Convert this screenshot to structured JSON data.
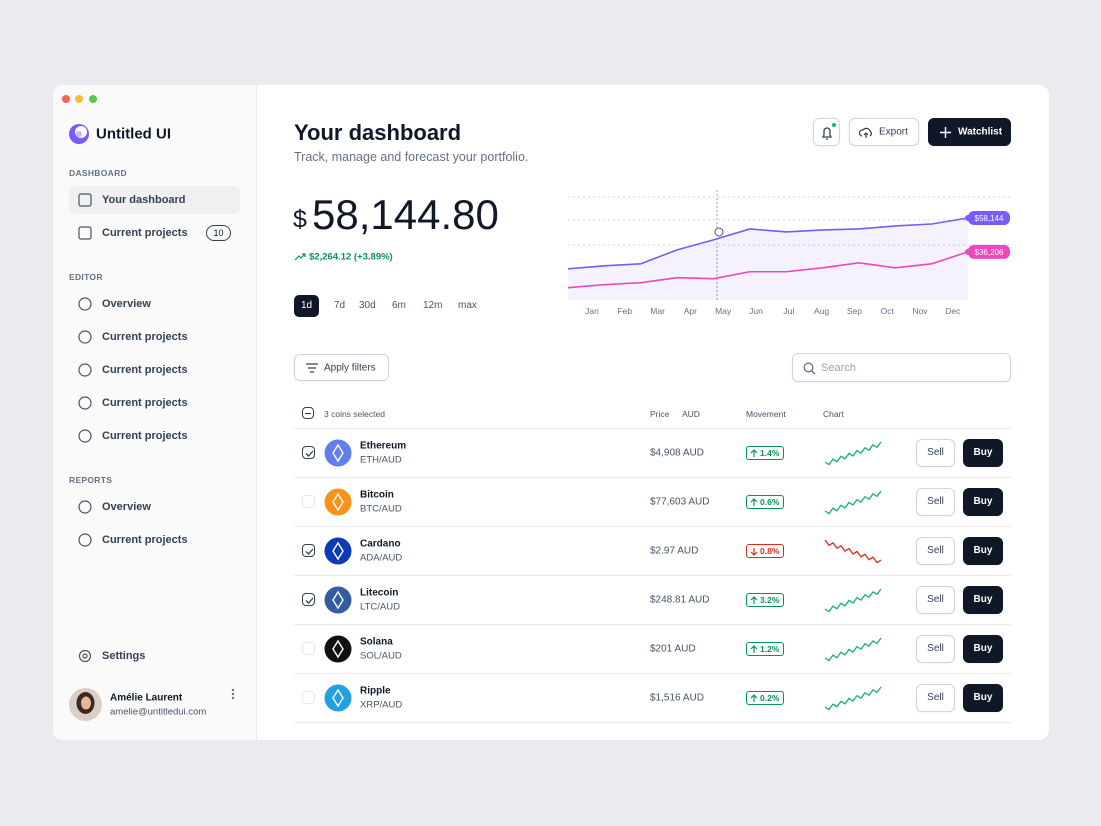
{
  "sidebar": {
    "brand": "Untitled UI",
    "sections": [
      {
        "title": "DASHBOARD",
        "items": [
          {
            "label": "Your dashboard",
            "active": true
          },
          {
            "label": "Current projects",
            "badge": "10"
          }
        ]
      },
      {
        "title": "EDITOR",
        "items": [
          {
            "label": "Overview"
          },
          {
            "label": "Current projects"
          },
          {
            "label": "Current projects"
          },
          {
            "label": "Current projects"
          },
          {
            "label": "Current projects"
          }
        ]
      },
      {
        "title": "REPORTS",
        "items": [
          {
            "label": "Overview"
          },
          {
            "label": "Current projects"
          }
        ]
      }
    ],
    "settings": "Settings",
    "user": {
      "name": "Amélie Laurent",
      "email": "amelie@untitledui.com"
    }
  },
  "header": {
    "title": "Your dashboard",
    "subtitle": "Track, manage and forecast your portfolio.",
    "export": "Export",
    "watchlist": "Watchlist"
  },
  "balance": {
    "currency": "$",
    "amount": "58,144.80",
    "change": "$2,264.12 (+3.89%)",
    "ranges": [
      "1d",
      "7d",
      "30d",
      "6m",
      "12m",
      "max"
    ],
    "active_range": 0
  },
  "portfolio_chart": {
    "type": "line",
    "categories": [
      "Jan",
      "Feb",
      "Mar",
      "Apr",
      "May",
      "Jun",
      "Jul",
      "Aug",
      "Sep",
      "Oct",
      "Nov",
      "Dec"
    ],
    "series": [
      {
        "color": "#7a5af8",
        "values": [
          25241,
          27176,
          28466,
          37496,
          43946,
          51041,
          49106,
          50396,
          51041,
          52976,
          54266,
          58144
        ],
        "value_labels": [
          null,
          null,
          null,
          null,
          null,
          null,
          null,
          null,
          null,
          null,
          null,
          "$58,144"
        ]
      },
      {
        "color": "#ee46bc",
        "values": [
          12986,
          14921,
          16211,
          19436,
          18791,
          23306,
          23306,
          25886,
          29111,
          25886,
          28466,
          36206
        ],
        "value_labels": [
          null,
          null,
          null,
          null,
          null,
          null,
          null,
          null,
          null,
          null,
          null,
          "$36,206"
        ]
      }
    ],
    "ylim": [
      5000,
      75000
    ]
  },
  "filters": {
    "apply": "Apply filters",
    "search": "Search"
  },
  "table": {
    "selected": "3 coins selected",
    "columns": {
      "price": "Price",
      "currency": "AUD",
      "movement": "Movement",
      "chart": "Chart"
    },
    "actions": {
      "sell": "Sell",
      "buy": "Buy"
    },
    "rows": [
      {
        "name": "Ethereum",
        "pair": "ETH/AUD",
        "price": "$4,908 AUD",
        "movement": "1.4%",
        "direction": "up",
        "checked": true,
        "color": "#627eea"
      },
      {
        "name": "Bitcoin",
        "pair": "BTC/AUD",
        "price": "$77,603 AUD",
        "movement": "0.6%",
        "direction": "up",
        "checked": false,
        "color": "#f7931a"
      },
      {
        "name": "Cardano",
        "pair": "ADA/AUD",
        "price": "$2.97 AUD",
        "movement": "0.8%",
        "direction": "down",
        "checked": true,
        "color": "#0d3bb5"
      },
      {
        "name": "Litecoin",
        "pair": "LTC/AUD",
        "price": "$248.81 AUD",
        "movement": "3.2%",
        "direction": "up",
        "checked": true,
        "color": "#345d9d"
      },
      {
        "name": "Solana",
        "pair": "SOL/AUD",
        "price": "$201 AUD",
        "movement": "1.2%",
        "direction": "up",
        "checked": false,
        "color": "#111111"
      },
      {
        "name": "Ripple",
        "pair": "XRP/AUD",
        "price": "$1,516 AUD",
        "movement": "0.2%",
        "direction": "up",
        "checked": false,
        "color": "#23a0e0"
      }
    ]
  }
}
